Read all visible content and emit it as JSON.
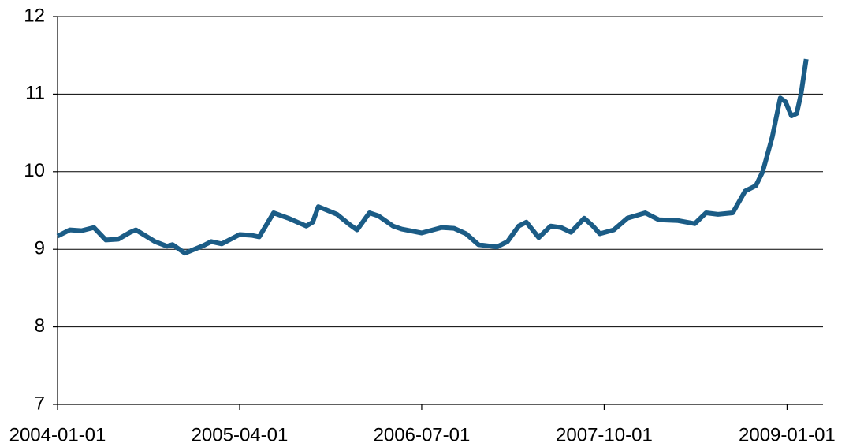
{
  "chart_data": {
    "type": "line",
    "x": [
      "2004-01-01",
      "2004-02-01",
      "2004-03-01",
      "2004-04-01",
      "2004-05-01",
      "2004-06-01",
      "2004-07-01",
      "2004-07-15",
      "2004-09-01",
      "2004-10-01",
      "2004-10-15",
      "2004-11-15",
      "2005-01-01",
      "2005-01-20",
      "2005-02-15",
      "2005-04-01",
      "2005-05-01",
      "2005-05-20",
      "2005-06-25",
      "2005-08-01",
      "2005-09-15",
      "2005-10-01",
      "2005-10-15",
      "2005-12-01",
      "2006-01-01",
      "2006-01-20",
      "2006-02-20",
      "2006-03-15",
      "2006-04-20",
      "2006-05-12",
      "2006-07-01",
      "2006-08-20",
      "2006-09-20",
      "2006-10-20",
      "2006-11-20",
      "2007-01-05",
      "2007-02-01",
      "2007-03-01",
      "2007-03-20",
      "2007-04-20",
      "2007-05-20",
      "2007-06-15",
      "2007-07-10",
      "2007-08-12",
      "2007-09-03",
      "2007-09-20",
      "2007-10-25",
      "2007-11-28",
      "2008-01-12",
      "2008-02-15",
      "2008-04-03",
      "2008-05-15",
      "2008-06-12",
      "2008-07-12",
      "2008-08-18",
      "2008-09-18",
      "2008-10-15",
      "2008-11-01",
      "2008-11-25",
      "2008-12-15",
      "2008-12-28",
      "2009-01-12",
      "2009-01-25",
      "2009-02-05",
      "2009-02-18"
    ],
    "series": [
      {
        "color": "#1b5c86",
        "values": [
          9.17,
          9.25,
          9.24,
          9.28,
          9.12,
          9.13,
          9.22,
          9.25,
          9.1,
          9.04,
          9.06,
          8.95,
          9.05,
          9.1,
          9.07,
          9.19,
          9.18,
          9.16,
          9.47,
          9.4,
          9.3,
          9.35,
          9.55,
          9.45,
          9.32,
          9.25,
          9.47,
          9.43,
          9.3,
          9.26,
          9.21,
          9.28,
          9.27,
          9.2,
          9.06,
          9.03,
          9.1,
          9.3,
          9.35,
          9.15,
          9.3,
          9.28,
          9.22,
          9.4,
          9.3,
          9.2,
          9.25,
          9.4,
          9.47,
          9.38,
          9.37,
          9.33,
          9.47,
          9.45,
          9.47,
          9.75,
          9.82,
          10.0,
          10.45,
          10.95,
          10.9,
          10.72,
          10.75,
          11.0,
          11.45
        ]
      }
    ],
    "xlim": [
      "2004-01-01",
      "2009-04-01"
    ],
    "xticks": [
      "2004-01-01",
      "2005-04-01",
      "2006-07-01",
      "2007-10-01",
      "2009-01-01"
    ],
    "ylim": [
      7,
      12
    ],
    "yticks": [
      7,
      8,
      9,
      10,
      11,
      12
    ],
    "grid": true
  }
}
